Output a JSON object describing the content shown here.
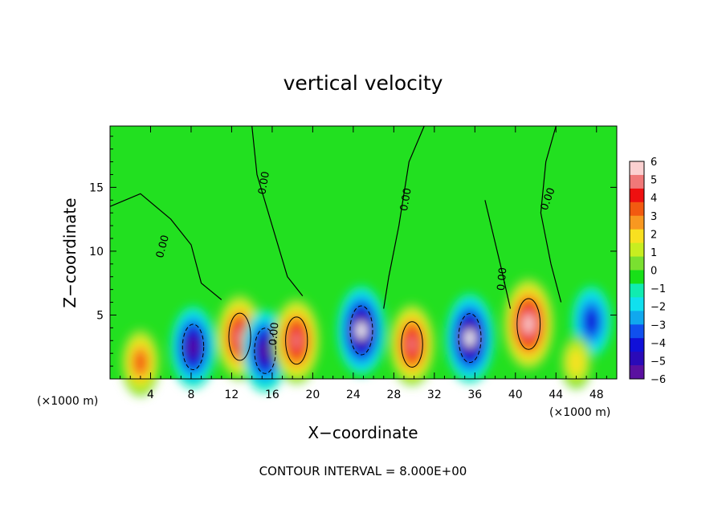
{
  "chart_data": {
    "type": "heatmap",
    "title": "vertical velocity",
    "xlabel": "X−coordinate",
    "ylabel": "Z−coordinate",
    "x_unit": "(×1000 m)",
    "x_unit_right": "(×1000 m)",
    "footer": "CONTOUR INTERVAL = 8.000E+00",
    "xlim": [
      0,
      50
    ],
    "ylim": [
      0,
      19.8
    ],
    "x_ticks": [
      4,
      8,
      12,
      16,
      20,
      24,
      28,
      32,
      36,
      40,
      44,
      48
    ],
    "y_ticks": [
      5,
      10,
      15
    ],
    "colorbar": {
      "ticks": [
        "6",
        "5",
        "4",
        "3",
        "2",
        "1",
        "0",
        "−1",
        "−2",
        "−3",
        "−4",
        "−5",
        "−6"
      ],
      "colors": [
        "#fbd0d0",
        "#f07878",
        "#ee1010",
        "#f25a10",
        "#f89820",
        "#f8e020",
        "#c8ee20",
        "#7ae030",
        "#18e018",
        "#10ecb0",
        "#10e0ee",
        "#10a8ee",
        "#1050ee",
        "#1010d8",
        "#2a0ab8",
        "#5a10a0"
      ]
    },
    "contour_labels": [
      "0.00",
      "0.00",
      "0.00",
      "0.00",
      "0.00",
      "0.00"
    ],
    "features": [
      {
        "x": 3.0,
        "z": 1.3,
        "sign": 1,
        "amp": 4.5
      },
      {
        "x": 8.2,
        "z": 2.5,
        "sign": -1,
        "amp": 6.5
      },
      {
        "x": 12.8,
        "z": 3.3,
        "sign": 1,
        "amp": 7.0
      },
      {
        "x": 15.3,
        "z": 2.2,
        "sign": -1,
        "amp": 6.5
      },
      {
        "x": 18.4,
        "z": 3.0,
        "sign": 1,
        "amp": 7.0
      },
      {
        "x": 24.8,
        "z": 3.8,
        "sign": -1,
        "amp": 7.5
      },
      {
        "x": 29.8,
        "z": 2.7,
        "sign": 1,
        "amp": 6.5
      },
      {
        "x": 35.5,
        "z": 3.2,
        "sign": -1,
        "amp": 7.5
      },
      {
        "x": 41.3,
        "z": 4.3,
        "sign": 1,
        "amp": 8.0
      },
      {
        "x": 47.5,
        "z": 4.5,
        "sign": -1,
        "amp": 5.0
      },
      {
        "x": 46.0,
        "z": 1.3,
        "sign": 1,
        "amp": 2.5
      }
    ]
  }
}
